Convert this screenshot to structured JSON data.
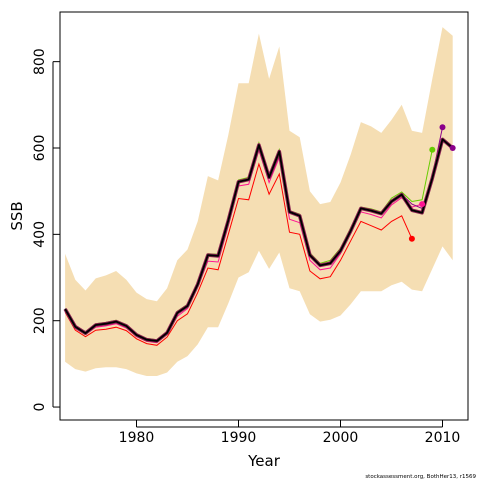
{
  "chart_data": {
    "type": "line",
    "title": "",
    "xlabel": "Year",
    "ylabel": "SSB",
    "xlim": [
      1972.5,
      2012.5
    ],
    "ylim": [
      -30,
      915
    ],
    "x_ticks": [
      1980,
      1990,
      2000,
      2010
    ],
    "y_ticks": [
      0,
      200,
      400,
      600,
      800
    ],
    "grid": false,
    "legend": "none",
    "footnote": "stockassessment.org, BothHer13, r1569",
    "colors": {
      "band": "#f5deb3",
      "main": "#000000",
      "main_outline": "#8b2252",
      "retro_red": "#ff0000",
      "retro_pink": "#ff1493",
      "retro_green": "#66cc00",
      "retro_purple": "#8b008b"
    },
    "confidence_band": {
      "x": [
        1973,
        1974,
        1975,
        1976,
        1977,
        1978,
        1979,
        1980,
        1981,
        1982,
        1983,
        1984,
        1985,
        1986,
        1987,
        1988,
        1989,
        1990,
        1991,
        1992,
        1993,
        1994,
        1995,
        1996,
        1997,
        1998,
        1999,
        2000,
        2001,
        2002,
        2003,
        2004,
        2005,
        2006,
        2007,
        2008,
        2009,
        2010,
        2011
      ],
      "upper": [
        355,
        295,
        270,
        298,
        305,
        315,
        295,
        265,
        250,
        245,
        275,
        340,
        365,
        430,
        535,
        525,
        630,
        750,
        750,
        865,
        760,
        835,
        640,
        625,
        500,
        470,
        475,
        520,
        585,
        660,
        650,
        635,
        665,
        700,
        640,
        635,
        760,
        880,
        860
      ],
      "lower": [
        105,
        88,
        82,
        90,
        92,
        92,
        88,
        78,
        72,
        72,
        80,
        105,
        118,
        145,
        185,
        185,
        240,
        300,
        312,
        362,
        320,
        358,
        275,
        268,
        215,
        198,
        202,
        212,
        238,
        268,
        268,
        268,
        282,
        290,
        272,
        268,
        320,
        372,
        340
      ]
    },
    "series": [
      {
        "role": "retro-2007",
        "color": "#ff0000",
        "x": [
          1973,
          1974,
          1975,
          1976,
          1977,
          1978,
          1979,
          1980,
          1981,
          1982,
          1983,
          1984,
          1985,
          1986,
          1987,
          1988,
          1989,
          1990,
          1991,
          1992,
          1993,
          1994,
          1995,
          1996,
          1997,
          1998,
          1999,
          2000,
          2001,
          2002,
          2003,
          2004,
          2005,
          2006,
          2007
        ],
        "values": [
          220,
          178,
          163,
          178,
          180,
          185,
          177,
          158,
          147,
          143,
          162,
          200,
          216,
          265,
          322,
          318,
          400,
          483,
          480,
          563,
          493,
          540,
          405,
          400,
          315,
          297,
          302,
          340,
          385,
          430,
          420,
          410,
          430,
          443,
          390
        ]
      },
      {
        "role": "retro-2008",
        "color": "#ff1493",
        "x": [
          1973,
          1974,
          1975,
          1976,
          1977,
          1978,
          1979,
          1980,
          1981,
          1982,
          1983,
          1984,
          1985,
          1986,
          1987,
          1988,
          1989,
          1990,
          1991,
          1992,
          1993,
          1994,
          1995,
          1996,
          1997,
          1998,
          1999,
          2000,
          2001,
          2002,
          2003,
          2004,
          2005,
          2006,
          2007,
          2008
        ],
        "values": [
          224,
          182,
          168,
          185,
          188,
          193,
          183,
          163,
          152,
          149,
          168,
          210,
          228,
          278,
          338,
          336,
          420,
          512,
          516,
          595,
          520,
          578,
          435,
          427,
          340,
          318,
          322,
          355,
          402,
          452,
          446,
          438,
          468,
          485,
          463,
          470
        ]
      },
      {
        "role": "retro-2009",
        "color": "#66cc00",
        "x": [
          1973,
          1974,
          1975,
          1976,
          1977,
          1978,
          1979,
          1980,
          1981,
          1982,
          1983,
          1984,
          1985,
          1986,
          1987,
          1988,
          1989,
          1990,
          1991,
          1992,
          1993,
          1994,
          1995,
          1996,
          1997,
          1998,
          1999,
          2000,
          2001,
          2002,
          2003,
          2004,
          2005,
          2006,
          2007,
          2008,
          2009
        ],
        "values": [
          228,
          188,
          174,
          193,
          196,
          201,
          191,
          170,
          159,
          156,
          175,
          222,
          238,
          290,
          355,
          354,
          440,
          526,
          532,
          612,
          537,
          596,
          455,
          447,
          357,
          333,
          340,
          368,
          415,
          463,
          459,
          452,
          484,
          498,
          476,
          480,
          596
        ]
      },
      {
        "role": "retro-2010",
        "color": "#8b008b",
        "x": [
          1973,
          1974,
          1975,
          1976,
          1977,
          1978,
          1979,
          1980,
          1981,
          1982,
          1983,
          1984,
          1985,
          1986,
          1987,
          1988,
          1989,
          1990,
          1991,
          1992,
          1993,
          1994,
          1995,
          1996,
          1997,
          1998,
          1999,
          2000,
          2001,
          2002,
          2003,
          2004,
          2005,
          2006,
          2007,
          2008,
          2009,
          2010
        ],
        "values": [
          228,
          187,
          172,
          191,
          194,
          199,
          189,
          168,
          157,
          154,
          173,
          219,
          235,
          286,
          350,
          351,
          435,
          522,
          528,
          604,
          533,
          590,
          452,
          443,
          353,
          329,
          336,
          363,
          410,
          460,
          455,
          448,
          478,
          493,
          470,
          460,
          535,
          648
        ]
      },
      {
        "role": "final",
        "color": "#000000",
        "x": [
          1973,
          1974,
          1975,
          1976,
          1977,
          1978,
          1979,
          1980,
          1981,
          1982,
          1983,
          1984,
          1985,
          1986,
          1987,
          1988,
          1989,
          1990,
          1991,
          1992,
          1993,
          1994,
          1995,
          1996,
          1997,
          1998,
          1999,
          2000,
          2001,
          2002,
          2003,
          2004,
          2005,
          2006,
          2007,
          2008,
          2009,
          2010,
          2011
        ],
        "values": [
          227,
          186,
          171,
          190,
          193,
          198,
          188,
          167,
          156,
          153,
          172,
          218,
          234,
          284,
          352,
          350,
          432,
          522,
          527,
          607,
          532,
          592,
          452,
          443,
          352,
          328,
          333,
          362,
          408,
          460,
          455,
          448,
          476,
          492,
          456,
          450,
          530,
          620,
          600
        ]
      }
    ]
  }
}
